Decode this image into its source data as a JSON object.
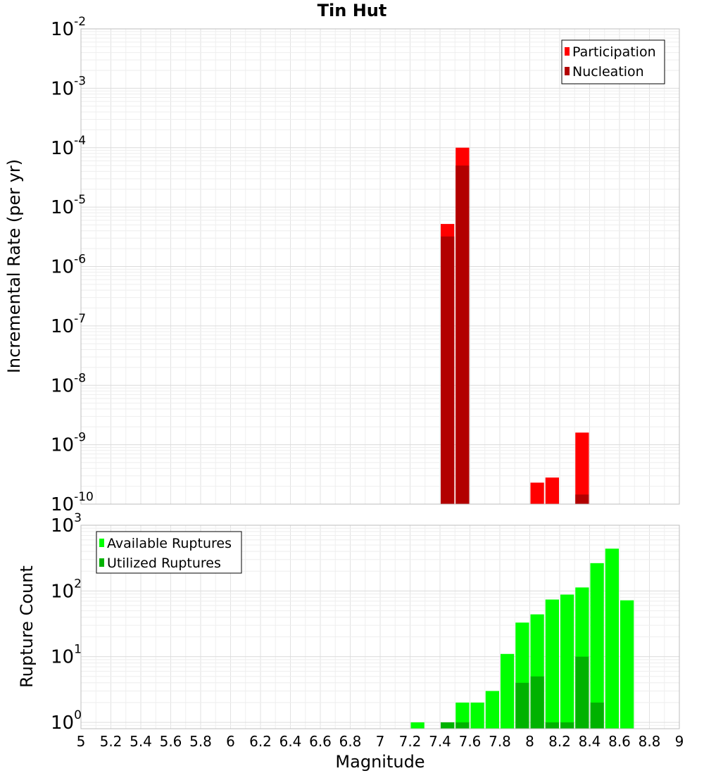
{
  "chart_data": {
    "title": "Tin Hut",
    "xlabel": "Magnitude",
    "xlim": [
      5,
      9
    ],
    "xticks": [
      "5",
      "5.2",
      "5.4",
      "5.6",
      "5.8",
      "6",
      "6.2",
      "6.4",
      "6.6",
      "6.8",
      "7",
      "7.2",
      "7.4",
      "7.6",
      "7.8",
      "8",
      "8.2",
      "8.4",
      "8.6",
      "8.8",
      "9"
    ],
    "bin_width": 0.1,
    "panels": [
      {
        "type": "bar",
        "ylabel": "Incremental Rate (per yr)",
        "yscale": "log",
        "ylim": [
          1e-10,
          0.01
        ],
        "ytick_exponents": [
          "-10",
          "-9",
          "-8",
          "-7",
          "-6",
          "-5",
          "-4",
          "-3",
          "-2"
        ],
        "legend_position": "top-right",
        "grid": true,
        "series": [
          {
            "name": "Participation",
            "color": "#ff0000",
            "points": [
              {
                "x": 7.45,
                "y": 5.2e-06
              },
              {
                "x": 7.55,
                "y": 0.0001
              },
              {
                "x": 8.05,
                "y": 2.3e-10
              },
              {
                "x": 8.15,
                "y": 2.8e-10
              },
              {
                "x": 8.35,
                "y": 1.6e-09
              }
            ]
          },
          {
            "name": "Nucleation",
            "color": "#b20000",
            "points": [
              {
                "x": 7.45,
                "y": 3.2e-06
              },
              {
                "x": 7.55,
                "y": 5e-05
              },
              {
                "x": 8.35,
                "y": 1.45e-10
              }
            ]
          }
        ]
      },
      {
        "type": "bar",
        "ylabel": "Rupture Count",
        "yscale": "log",
        "ylim": [
          0.8,
          1000
        ],
        "ytick_exponents": [
          "0",
          "1",
          "2",
          "3"
        ],
        "legend_position": "top-left",
        "grid": true,
        "series": [
          {
            "name": "Available Ruptures",
            "color": "#00ff00",
            "points": [
              {
                "x": 7.25,
                "y": 1
              },
              {
                "x": 7.45,
                "y": 1
              },
              {
                "x": 7.55,
                "y": 2
              },
              {
                "x": 7.65,
                "y": 2
              },
              {
                "x": 7.75,
                "y": 3
              },
              {
                "x": 7.85,
                "y": 11
              },
              {
                "x": 7.95,
                "y": 33
              },
              {
                "x": 8.05,
                "y": 44
              },
              {
                "x": 8.15,
                "y": 74
              },
              {
                "x": 8.25,
                "y": 88
              },
              {
                "x": 8.35,
                "y": 113
              },
              {
                "x": 8.45,
                "y": 265
              },
              {
                "x": 8.55,
                "y": 440
              },
              {
                "x": 8.65,
                "y": 72
              }
            ]
          },
          {
            "name": "Utilized Ruptures",
            "color": "#00b200",
            "points": [
              {
                "x": 7.45,
                "y": 1
              },
              {
                "x": 7.55,
                "y": 1
              },
              {
                "x": 7.95,
                "y": 4
              },
              {
                "x": 8.05,
                "y": 5
              },
              {
                "x": 8.15,
                "y": 1
              },
              {
                "x": 8.25,
                "y": 1
              },
              {
                "x": 8.35,
                "y": 10
              },
              {
                "x": 8.45,
                "y": 2
              }
            ]
          }
        ]
      }
    ]
  }
}
